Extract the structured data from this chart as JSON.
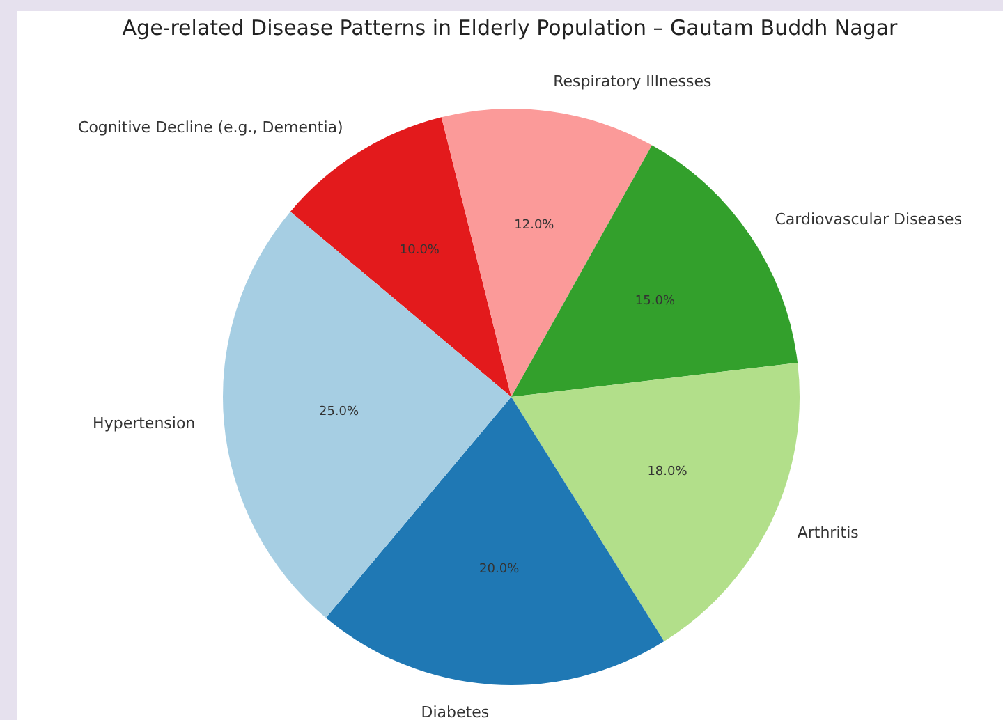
{
  "chart_data": {
    "type": "pie",
    "title": "Age-related Disease Patterns in Elderly Population – Gautam Buddh Nagar",
    "categories": [
      "Hypertension",
      "Diabetes",
      "Arthritis",
      "Cardiovascular Diseases",
      "Respiratory Illnesses",
      "Cognitive Decline (e.g., Dementia)"
    ],
    "values": [
      25,
      20,
      18,
      15,
      12,
      10
    ],
    "colors": [
      "#a6cee3",
      "#1f78b4",
      "#b2df8a",
      "#33a02c",
      "#fb9a99",
      "#e31a1c"
    ],
    "value_labels": [
      "25.0%",
      "20.0%",
      "18.0%",
      "15.0%",
      "12.0%",
      "10.0%"
    ],
    "legend": false
  }
}
